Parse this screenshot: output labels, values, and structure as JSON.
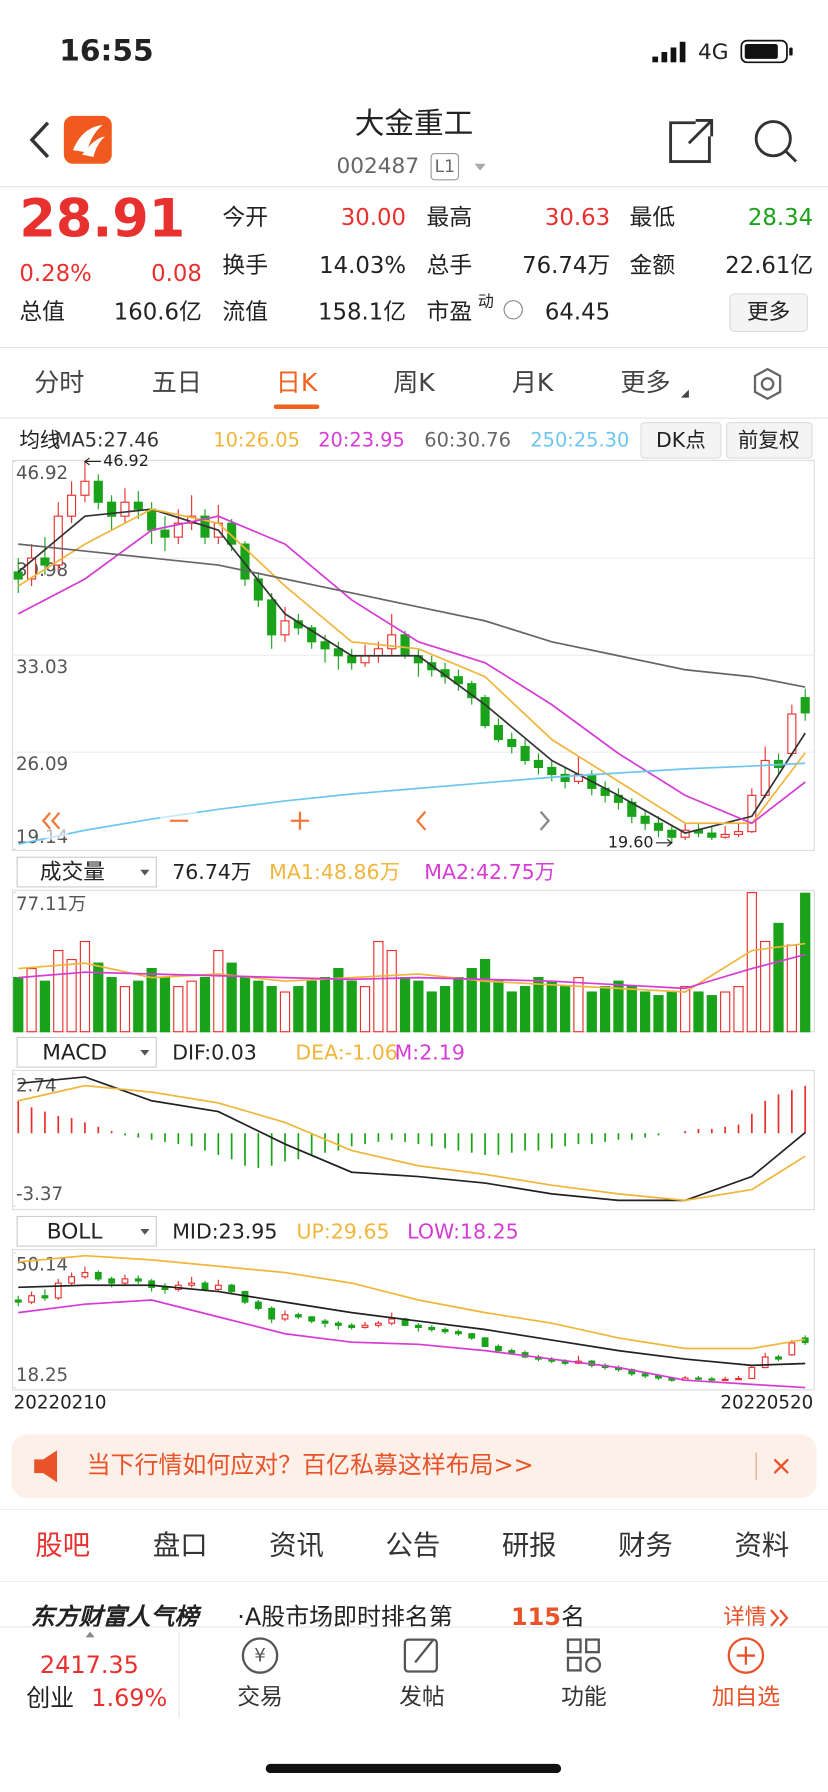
{
  "status": {
    "time": "16:55",
    "network": "4G"
  },
  "header": {
    "title": "大金重工",
    "code": "002487",
    "badge": "L1"
  },
  "quote": {
    "price": "28.91",
    "change_pct": "0.28%",
    "change": "0.08",
    "fields": [
      {
        "label": "今开",
        "value": "30.00",
        "color": "#e8312f"
      },
      {
        "label": "最高",
        "value": "30.63",
        "color": "#e8312f"
      },
      {
        "label": "最低",
        "value": "28.34",
        "color": "#1aa31a"
      },
      {
        "label": "换手",
        "value": "14.03%",
        "color": "#222"
      },
      {
        "label": "总手",
        "value": "76.74万",
        "color": "#222"
      },
      {
        "label": "金额",
        "value": "22.61亿",
        "color": "#222"
      },
      {
        "label": "总值",
        "value": "160.6亿",
        "color": "#222"
      },
      {
        "label": "流值",
        "value": "158.1亿",
        "color": "#222"
      },
      {
        "label": "市盈",
        "value": "64.45",
        "color": "#222"
      }
    ],
    "pe_mark": "动",
    "more": "更多"
  },
  "tabs": {
    "items": [
      "分时",
      "五日",
      "日K",
      "周K",
      "月K",
      "更多"
    ],
    "active": 2
  },
  "chart_data": {
    "type": "candlestick",
    "ma_label": "均线",
    "ma_legend": [
      {
        "text": "MA5:27.46",
        "color": "#333333"
      },
      {
        "text": "10:26.05",
        "color": "#f0b63c"
      },
      {
        "text": "20:23.95",
        "color": "#d63bd6"
      },
      {
        "text": "60:30.76",
        "color": "#666666"
      },
      {
        "text": "250:25.30",
        "color": "#6ec6f0"
      }
    ],
    "buttons": [
      "DK点",
      "前复权"
    ],
    "up_color": "#e8312f",
    "down_color": "#1aa31a",
    "candles": [
      [
        39.0,
        38.5,
        40.0,
        37.5
      ],
      [
        38.5,
        40.0,
        41.0,
        38.0
      ],
      [
        40.0,
        39.5,
        41.5,
        38.8
      ],
      [
        39.5,
        43.0,
        44.0,
        39.0
      ],
      [
        43.0,
        44.5,
        45.5,
        42.5
      ],
      [
        44.5,
        45.5,
        46.92,
        44.0
      ],
      [
        45.5,
        44.0,
        46.0,
        43.5
      ],
      [
        44.0,
        43.0,
        44.5,
        42.0
      ],
      [
        43.0,
        44.0,
        45.0,
        42.5
      ],
      [
        44.0,
        43.5,
        44.8,
        42.8
      ],
      [
        43.5,
        42.0,
        44.0,
        41.0
      ],
      [
        42.0,
        41.5,
        43.0,
        40.5
      ],
      [
        41.5,
        42.5,
        43.5,
        41.0
      ],
      [
        42.5,
        43.0,
        44.5,
        42.0
      ],
      [
        43.0,
        41.5,
        43.5,
        41.0
      ],
      [
        41.5,
        42.5,
        43.8,
        41.0
      ],
      [
        42.5,
        41.0,
        42.8,
        40.5
      ],
      [
        41.0,
        38.5,
        41.2,
        38.0
      ],
      [
        38.5,
        37.0,
        39.0,
        36.5
      ],
      [
        37.0,
        34.5,
        37.5,
        33.5
      ],
      [
        34.5,
        35.5,
        36.5,
        34.0
      ],
      [
        35.5,
        35.0,
        36.0,
        34.5
      ],
      [
        35.0,
        34.0,
        35.2,
        33.5
      ],
      [
        34.0,
        33.5,
        34.5,
        32.5
      ],
      [
        33.5,
        33.0,
        34.0,
        32.0
      ],
      [
        33.0,
        32.5,
        33.5,
        32.0
      ],
      [
        32.5,
        33.0,
        33.8,
        32.2
      ],
      [
        33.0,
        33.5,
        34.0,
        32.5
      ],
      [
        33.5,
        34.5,
        36.0,
        33.0
      ],
      [
        34.5,
        33.0,
        34.8,
        32.8
      ],
      [
        33.0,
        32.5,
        33.5,
        31.5
      ],
      [
        32.5,
        32.0,
        33.0,
        31.5
      ],
      [
        32.0,
        31.5,
        32.5,
        31.0
      ],
      [
        31.5,
        31.0,
        32.0,
        30.5
      ],
      [
        31.0,
        30.0,
        31.2,
        29.5
      ],
      [
        30.0,
        28.0,
        30.2,
        27.8
      ],
      [
        28.0,
        27.0,
        28.5,
        26.8
      ],
      [
        27.0,
        26.5,
        27.5,
        26.0
      ],
      [
        26.5,
        25.5,
        27.0,
        25.2
      ],
      [
        25.5,
        25.0,
        26.0,
        24.5
      ],
      [
        25.0,
        24.5,
        25.5,
        24.0
      ],
      [
        24.5,
        24.0,
        25.0,
        23.5
      ],
      [
        24.0,
        24.5,
        25.8,
        23.8
      ],
      [
        24.5,
        23.5,
        24.8,
        23.0
      ],
      [
        23.5,
        23.0,
        24.0,
        22.5
      ],
      [
        23.0,
        22.5,
        23.5,
        22.0
      ],
      [
        22.5,
        21.5,
        22.8,
        21.0
      ],
      [
        21.5,
        21.0,
        22.0,
        20.5
      ],
      [
        21.0,
        20.5,
        21.5,
        20.0
      ],
      [
        20.5,
        20.0,
        20.8,
        19.6
      ],
      [
        20.0,
        20.5,
        21.0,
        19.8
      ],
      [
        20.5,
        20.3,
        21.0,
        20.0
      ],
      [
        20.3,
        20.0,
        20.8,
        19.8
      ],
      [
        20.0,
        20.2,
        20.8,
        19.9
      ],
      [
        20.2,
        20.4,
        21.0,
        20.0
      ],
      [
        20.4,
        23.0,
        23.5,
        20.3
      ],
      [
        23.0,
        25.5,
        26.5,
        22.8
      ],
      [
        25.5,
        25.0,
        26.0,
        24.5
      ],
      [
        26.0,
        28.83,
        29.5,
        25.8
      ],
      [
        30.0,
        28.91,
        30.63,
        28.34
      ]
    ],
    "ylim": [
      19.14,
      46.92
    ],
    "yticks": [
      46.92,
      39.98,
      33.03,
      26.09,
      19.14
    ],
    "high_label": "46.92",
    "low_label": "19.60",
    "ma_x": [
      0,
      5,
      10,
      15,
      20,
      25,
      30,
      35,
      40,
      45,
      50,
      55,
      59
    ],
    "ma": [
      {
        "color": "#333333",
        "values": [
          39,
          43,
          43.5,
          42,
          36,
          33,
          33,
          29.5,
          25.5,
          23,
          20.3,
          21.5,
          27.46
        ]
      },
      {
        "color": "#f0b63c",
        "values": [
          38,
          41,
          43.5,
          42.5,
          38,
          34,
          33.5,
          31.5,
          27,
          24,
          21,
          21,
          26.05
        ]
      },
      {
        "color": "#d63bd6",
        "values": [
          36,
          38.5,
          42,
          43,
          41,
          37,
          34,
          32.5,
          29.5,
          26,
          23,
          21,
          23.95
        ]
      },
      {
        "color": "#666666",
        "values": [
          41,
          40.5,
          40,
          39.5,
          38.5,
          37.5,
          36.5,
          35.5,
          34,
          33,
          32,
          31.5,
          30.76
        ]
      },
      {
        "color": "#6ec6f0",
        "values": [
          19.5,
          20.5,
          21.3,
          22,
          22.6,
          23.1,
          23.5,
          23.9,
          24.3,
          24.6,
          24.9,
          25.1,
          25.3
        ]
      }
    ],
    "volume": {
      "selector": "成交量",
      "current": "76.74万",
      "ma1_label": "MA1:48.86万",
      "ma2_label": "MA2:42.75万",
      "values": [
        30,
        35,
        28,
        45,
        40,
        50,
        38,
        30,
        25,
        28,
        35,
        30,
        25,
        28,
        30,
        45,
        38,
        30,
        28,
        25,
        22,
        25,
        28,
        30,
        35,
        28,
        25,
        50,
        45,
        30,
        28,
        22,
        25,
        30,
        35,
        40,
        28,
        22,
        25,
        30,
        28,
        25,
        30,
        22,
        25,
        28,
        25,
        22,
        20,
        22,
        25,
        22,
        20,
        22,
        25,
        77.11,
        50,
        60,
        48,
        76.74
      ],
      "ylim": [
        0,
        77.11
      ],
      "yticks": [
        {
          "value": 77.11,
          "label": "77.11万"
        }
      ],
      "ma": [
        {
          "color": "#f0b63c",
          "values": [
            35,
            38,
            30,
            32,
            28,
            30,
            32,
            28,
            26,
            24,
            22,
            45,
            48.86
          ]
        },
        {
          "color": "#d63bd6",
          "values": [
            30,
            33,
            32,
            31,
            30,
            29,
            30,
            29,
            28,
            26,
            24,
            35,
            42.75
          ]
        }
      ]
    },
    "macd": {
      "selector": "MACD",
      "dif_label": "DIF:0.03",
      "dea_label": "DEA:-1.06",
      "m_label": "M:2.19",
      "values": [
        1.5,
        1.2,
        1.0,
        0.8,
        0.7,
        0.5,
        0.3,
        0.1,
        -0.1,
        -0.2,
        -0.3,
        -0.4,
        -0.5,
        -0.6,
        -0.8,
        -1.0,
        -1.2,
        -1.5,
        -1.6,
        -1.5,
        -1.3,
        -1.2,
        -1.0,
        -0.9,
        -0.8,
        -0.6,
        -0.5,
        -0.4,
        -0.3,
        -0.4,
        -0.5,
        -0.6,
        -0.7,
        -0.8,
        -0.9,
        -1.0,
        -1.0,
        -0.9,
        -0.8,
        -0.8,
        -0.7,
        -0.6,
        -0.5,
        -0.5,
        -0.4,
        -0.3,
        -0.3,
        -0.2,
        -0.1,
        0.0,
        0.1,
        0.2,
        0.2,
        0.3,
        0.4,
        0.9,
        1.5,
        1.8,
        2.0,
        2.19
      ],
      "ylim": [
        -3.37,
        2.74
      ],
      "yticks": [
        2.74,
        -3.37
      ],
      "lines": [
        {
          "color": "#222222",
          "values": [
            2.3,
            2.6,
            1.5,
            1.0,
            -0.5,
            -1.8,
            -2.0,
            -2.3,
            -2.8,
            -3.1,
            -3.1,
            -2.0,
            0.03
          ]
        },
        {
          "color": "#f0b63c",
          "values": [
            1.5,
            2.2,
            1.9,
            1.4,
            0.5,
            -0.8,
            -1.5,
            -1.9,
            -2.4,
            -2.8,
            -3.1,
            -2.6,
            -1.06
          ]
        }
      ]
    },
    "boll": {
      "selector": "BOLL",
      "mid_label": "MID:23.95",
      "up_label": "UP:29.65",
      "low_label": "LOW:18.25",
      "ylim": [
        18.25,
        50.14
      ],
      "yticks": [
        50.14,
        18.25
      ],
      "lines": [
        {
          "color": "#222222",
          "values": [
            42,
            42.5,
            42.5,
            41,
            38.5,
            36,
            34,
            32,
            29.5,
            27,
            25,
            23.5,
            23.95
          ]
        },
        {
          "color": "#f0b63c",
          "values": [
            48,
            49.5,
            48.5,
            47,
            45.5,
            43,
            39,
            36,
            33.5,
            30,
            27.5,
            27.5,
            29.65
          ]
        },
        {
          "color": "#d63bd6",
          "values": [
            36,
            38,
            39,
            35,
            31,
            29,
            28.5,
            27,
            25,
            23,
            20,
            19,
            18.25
          ]
        }
      ]
    },
    "dates": [
      "20220210",
      "20220520"
    ]
  },
  "ad": {
    "text": "当下行情如何应对？百亿私募这样布局>>"
  },
  "subtabs": {
    "items": [
      "股吧",
      "盘口",
      "资讯",
      "公告",
      "研报",
      "财务",
      "资料"
    ],
    "active": 0
  },
  "ranking": {
    "title": "东方财富人气榜",
    "text": "·A股市场即时排名第",
    "rank": "115",
    "unit": "名",
    "detail": "详情"
  },
  "bottom": {
    "index_value": "2417.35",
    "index_name": "创业",
    "index_pct": "1.69%",
    "nav": [
      "交易",
      "发帖",
      "功能",
      "加自选"
    ]
  }
}
